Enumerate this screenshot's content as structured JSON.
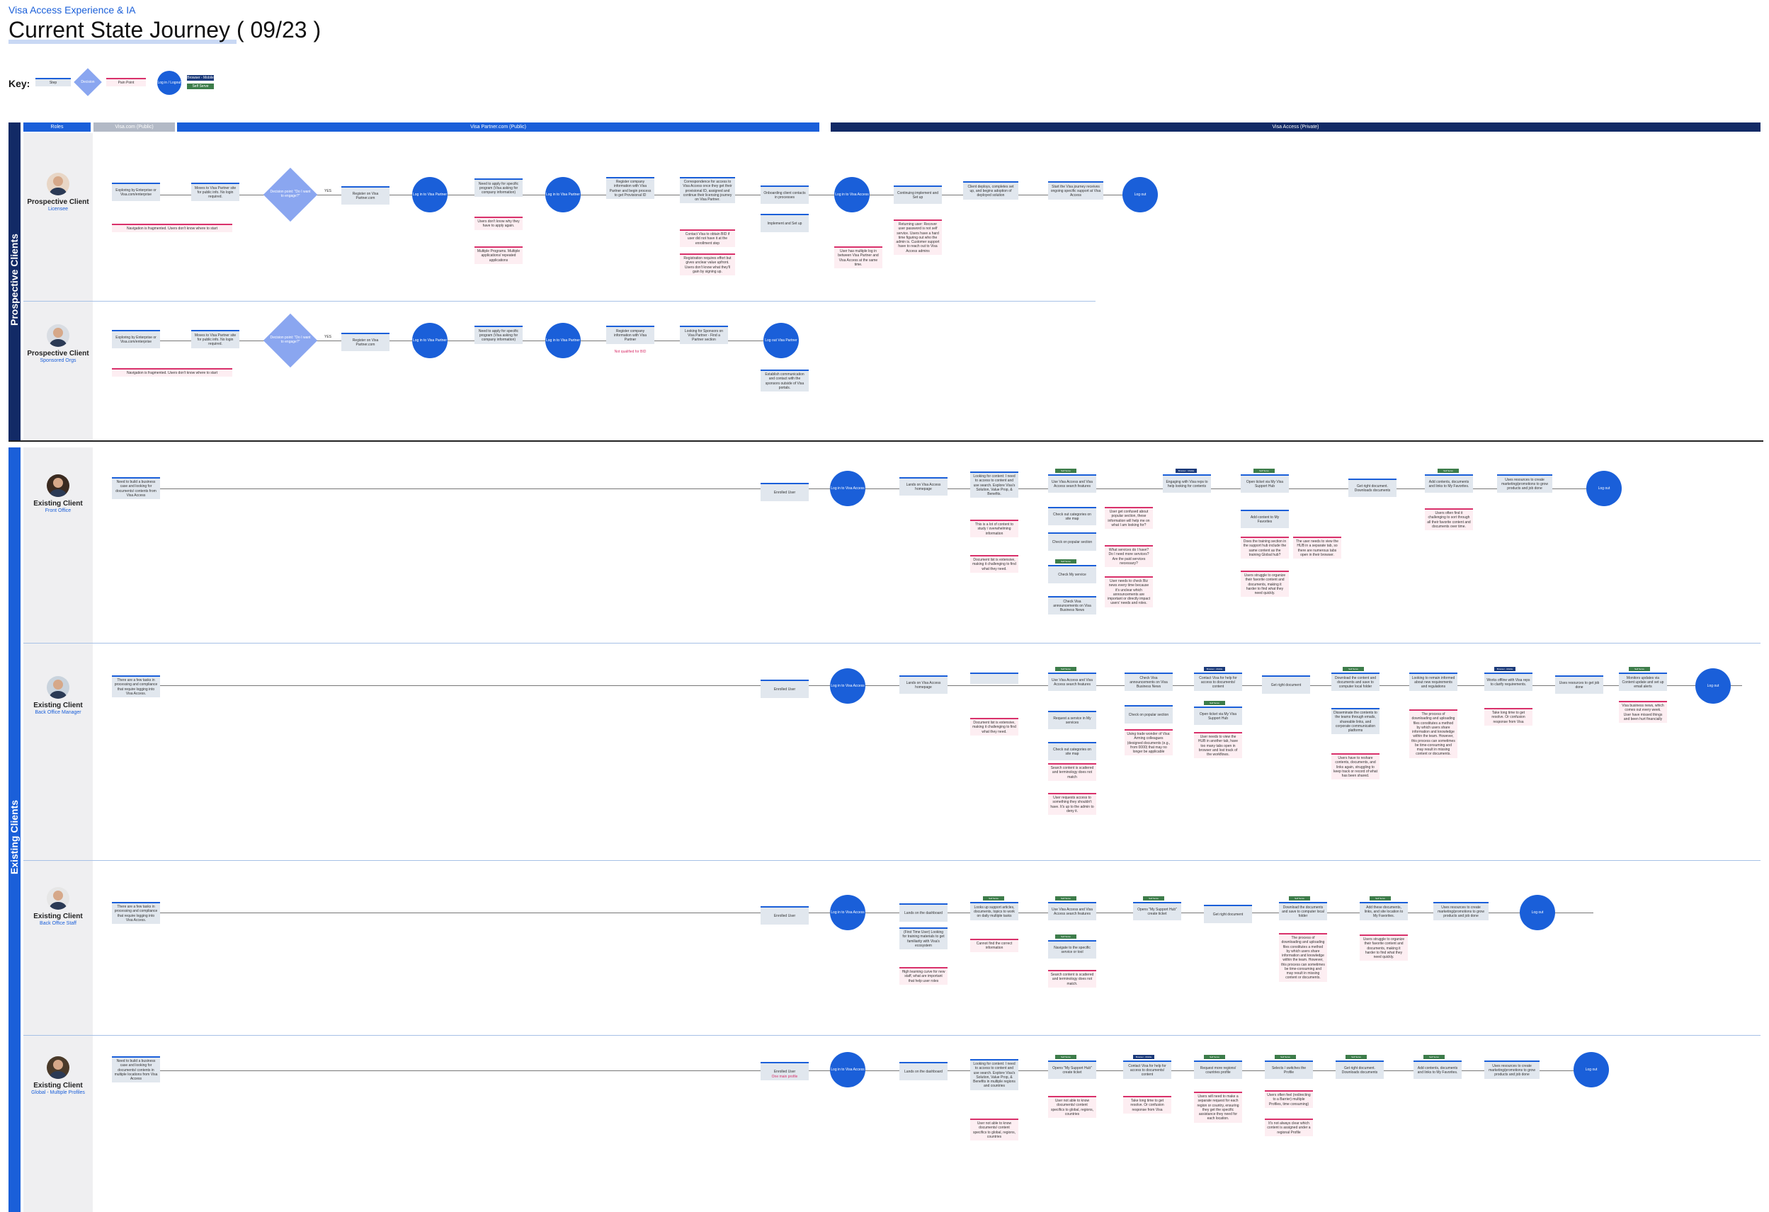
{
  "header": {
    "subtitle": "Visa Access Experience & IA",
    "title": "Current State Journey ( 09/23 )"
  },
  "key": {
    "label": "Key:",
    "step": "Step",
    "decision": "Decision",
    "pain_point": "Pain Point",
    "login": "Log in / Logout",
    "tag_navy": "Browser - Mobile",
    "tag_green": "Self Serve"
  },
  "bands": {
    "prospective": "Prospective Clients",
    "existing": "Existing Clients"
  },
  "phases": {
    "roles": "Roles",
    "visa_com": "Visa.com (Public)",
    "partner": "Visa Partner.com (Public)",
    "access": "Visa Access (Private)"
  },
  "tags": {
    "self_serve": "Self Serve",
    "browser": "Browser - Mobile"
  },
  "lanes": {
    "l1": {
      "name": "Prospective Client",
      "role": "Licensee",
      "s1": "Exploring by Enterprise or Visa.com/enterprise",
      "s2": "Moves to Visa Partner site for public info. No login required.",
      "d1": "Decision point: \"Do I want to engage?\"",
      "yes": "YES",
      "s3": "Register on Visa Partner.com",
      "c1": "Log in to Visa Partner",
      "s4": "Need to apply for specific program (Visa asking for company information)",
      "c2": "Log in to Visa Partner",
      "s5": "Register company information with Visa Partner and begin process to get Provisional ID",
      "s6": "Correspondence for access to Visa Access once they get their provisional ID, assigned and continue their licensing journey on Visa Partner.",
      "s7": "Onboarding client contacts in processes",
      "s8": "Implement and Set up",
      "c3": "Log in to Visa Access",
      "s9": "Continuing implement and Set up",
      "s10": "Client deploys, completes set up, and begins adoption of deployed solution",
      "s11": "Start the Visa journey receives ongoing specific support at Visa Access",
      "c4": "Log out",
      "p1": "Navigation is fragmented. Users don't know where to start",
      "p2": "Users don't know why they have to apply again.",
      "p3": "Multiple Programs. Multiple applications/ repeated applications",
      "p4": "Contact Visa to obtain BID if user did not have it at the enrollment step",
      "p5": "Registration requires effort but gives unclear value upfront. Users don't know what they'll gain by signing up.",
      "p6": "User has multiple log in between Visa Partner and Visa Access at the same time.",
      "p7": "Returning user: Recover user password is not self service. Users have a hard time figuring out who the admin is. Customer support have to reach out to Visa Access admins"
    },
    "l2": {
      "name": "Prospective Client",
      "role": "Sponsored Orgs",
      "s1": "Exploring by Enterprise or Visa.com/enterprise",
      "s2": "Moves to Visa Partner site for public info. No login required.",
      "d1": "Decision point: \"Do I want to engage?\"",
      "yes": "YES",
      "s3": "Register on Visa Partner.com",
      "c1": "Log in to Visa Partner",
      "s4": "Need to apply for specific program (Visa asking for company information)",
      "c2": "Log in to Visa Partner",
      "s5": "Register company information with Visa Partner",
      "p_s5": "Not qualified for BID",
      "s6": "Looking for Sponsors on Visa Partner - Find a Partner section",
      "c3": "Log out Visa Partner",
      "p1": "Navigation is fragmented. Users don't know where to start",
      "s7": "Establish communication and contact with the sponsors outside of Visa portals."
    },
    "l3": {
      "name": "Existing Client",
      "role": "Front Office",
      "s1": "Need to build a business case and looking for documents/ contents from Visa Access",
      "s2": "Enrolled User",
      "c1": "Log in to Visa Access",
      "s3": "Lands on Visa Access homepage",
      "s4": "Looking for content: I need to access to content and use search. Explore Visa's Solution, Value Prop, & Benefits.",
      "s5": "Use Visa Access and Visa Access search features",
      "s6": "Check out categories on site map",
      "s7": "Check on popular section",
      "s8": "Check My service",
      "s9": "Check Visa announcements on Visa Business News",
      "s10": "Engaging with Visa reps to help looking for contents",
      "s11": "Open ticket via My Visa Support Hub",
      "s12": "Add content to My Favorites",
      "s13": "Get right document. Downloads documents",
      "s14": "Add contents, documents and links to My Favorites.",
      "s15": "Uses resources to create marketing/promotions to grow products and job done",
      "c2": "Log out",
      "p1": "This is a lot of content to study / overwhelming information",
      "p2": "Document list is extensive, making it challenging to find what they need.",
      "p3": "User get confused about popular section, these information will help me on what I am looking for?",
      "p4": "What services do I have? Do I need more services? Are the paid services necessary?",
      "p5": "User needs to check Biz news every time because it's unclear which announcements are important or directly impact users' needs and roles.",
      "p6": "Does the training section in the support hub include the same content as the training Global hub?",
      "p7": "The user needs to view the HUB in a separate tab, so there are numerous tabs open in their browser.",
      "p8": "Users struggle to organize their favorite content and documents, making it harder to find what they need quickly.",
      "p9": "Users often find it challenging to sort through all their favorite content and documents over time."
    },
    "l4": {
      "name": "Existing Client",
      "role": "Back Office Manager",
      "s1": "There are a few tasks in processing and compliance that require logging into Visa Access.",
      "s2": "Enrolled User",
      "c1": "Log in to Visa Access",
      "s3": "Lands on Visa Access homepage",
      "s5": "Use Visa Access and Visa Access search features",
      "s6": "Request a service in My services",
      "s7": "Check out categories on site map",
      "s8": "Check Visa announcements on Visa Business News",
      "s9": "Check on popular section",
      "s10": "Contact Visa for help for access to documents/ content",
      "s11": "Open ticket via My Visa Support Hub",
      "s12": "Get right document",
      "s13": "Download the content and documents and save to computer local folder",
      "s14": "Disseminate the contents to the teams through emails, shareable links, and corporate communication platforms",
      "s15": "Looking to remain informed about new requirements and regulations",
      "s16": "Works offline with Visa reps to clarify requirements.",
      "s17": "Uses resources to get job done",
      "s18": "Monitors updates via Content update and set up email alerts",
      "c2": "Log out",
      "p1": "Document list is extensive, making it challenging to find what they need.",
      "p2": "Search content is scattered and terminology does not match",
      "p3": "User requests access to something they shouldn't have. It's up to the admin to deny it.",
      "p4": "Using trade wonder of Visa: Arming colleagues (designed documents (e.g., from 0000) that may no longer be applicable",
      "p5": "User needs to view the HUB in another tab, have too many tabs open in browser and lost track of the workflows.",
      "p6": "Users have to reshare contents, documents, and links again, struggling to keep track or record of what has been shared.",
      "p7": "The process of downloading and uploading files constitutes a method by which users share information and knowledge within the team. However, this process can sometimes be time-consuming and may result in missing content or documents.",
      "p8": "Take long time to get resolve. Or confusion response from Visa",
      "p9": "Visa business news, which comes out every week. User have missed things and been hurt financially"
    },
    "l5": {
      "name": "Existing Client",
      "role": "Back Office Staff",
      "s1": "There are a few tasks in processing and compliance that require logging into Visa Access.",
      "s2": "Enrolled User",
      "c1": "Log in to Visa Access",
      "s3": "Lands on the dashboard",
      "s3b": "(First Time User) Looking for training materials to get familiarity with Visa's ecosystem",
      "s4": "Looks up support articles, documents, topics to work on daily multiple tasks",
      "s5": "Use Visa Access and Visa Access search features",
      "s6": "Navigate to the specific service or tool",
      "s7": "Opens \"My Support Hub\" create ticket",
      "s8": "Get right document",
      "s9": "Download the documents and save to computer local folder",
      "s10": "Add these documents, links, and site location to My Favorites.",
      "s11": "Uses resources to create marketing/promotions to grow products and job done",
      "c2": "Log out",
      "p1": "High learning curve for new staff, what are important that help user roles",
      "p2": "Cannot find the correct information",
      "p3": "Search content is scattered and terminology does not match.",
      "p4": "The process of downloading and uploading files constitutes a method by which users share information and knowledge within the team. However, this process can sometimes be time-consuming and may result in missing content or documents.",
      "p5": "Users struggle to organize their favorite content and documents, making it harder to find what they need quickly."
    },
    "l6": {
      "name": "Existing Client",
      "role": "Global - Multiple Profiles",
      "s1": "Need to build a business case and looking for documents/ contents in multiple locations from Visa Access",
      "s2": "Enrolled User",
      "p_s2": "One main profile",
      "c1": "Log in to Visa Access",
      "s3": "Lands on the dashboard",
      "s4": "Looking for content: I need to access to content and use search. Explore Visa's Solution, Value Prop, & Benefits in multiple regions and countries",
      "s5": "Opens \"My Support Hub\" create ticket",
      "s6": "Contact Visa for help for access to documents/ content",
      "s7": "Request more regions/ countries profile",
      "s8": "Selects / switches the Profile",
      "s9": "Get right document. Downloads documents",
      "s10": "Add contents, documents and links to My Favorites.",
      "s11": "Uses resources to create marketing/promotions to grow products and job done",
      "c2": "Log out",
      "p1": "User not able to know documents/ content specifics to global, regions, countries",
      "p2": "User not able to know documents/ content specifics to global, regions, countries",
      "p3": "Take long time to get resolve. Or confusion response from Visa",
      "p4": "Users will need to make a separate request for each region or country, ensuring they get the specific assistance they need for each location.",
      "p5": "Users often feel (redirecting to a Barrier) multiple Profiles, time consuming)",
      "p6": "It's not always clear which content is assigned under a regional Profile"
    }
  }
}
